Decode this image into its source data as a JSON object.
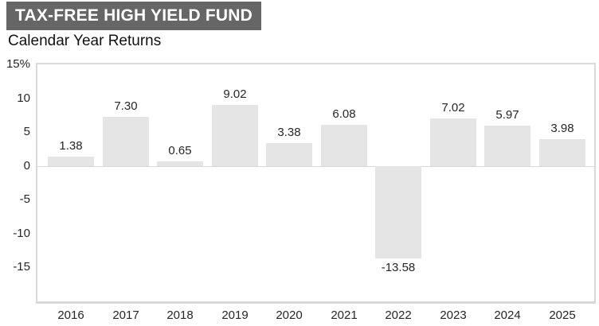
{
  "header": {
    "title": "TAX-FREE HIGH YIELD FUND",
    "subtitle": "Calendar Year Returns"
  },
  "colors": {
    "title_bg": "#666666",
    "title_text": "#ffffff",
    "bar_fill": "#e5e5e5",
    "plot_border": "#d9d9d9",
    "label_text": "#262626"
  },
  "chart_data": {
    "type": "bar",
    "title": "TAX-FREE HIGH YIELD FUND",
    "subtitle": "Calendar Year Returns",
    "categories": [
      "2016",
      "2017",
      "2018",
      "2019",
      "2020",
      "2021",
      "2022",
      "2023",
      "2024",
      "2025"
    ],
    "values": [
      1.38,
      7.3,
      0.65,
      9.02,
      3.38,
      6.08,
      -13.58,
      7.02,
      5.97,
      3.98
    ],
    "value_labels": [
      "1.38",
      "7.30",
      "0.65",
      "9.02",
      "3.38",
      "6.08",
      "-13.58",
      "7.02",
      "5.97",
      "3.98"
    ],
    "xlabel": "",
    "ylabel": "",
    "y_ticks": [
      15,
      10,
      5,
      0,
      -5,
      -10,
      -15
    ],
    "y_tick_labels": [
      "15%",
      "10",
      "5",
      "0",
      "-5",
      "-10",
      "-15"
    ],
    "ylim": [
      -20,
      15
    ],
    "grid": "zero-line-only",
    "legend": "none",
    "bar_color": "#e5e5e5"
  }
}
